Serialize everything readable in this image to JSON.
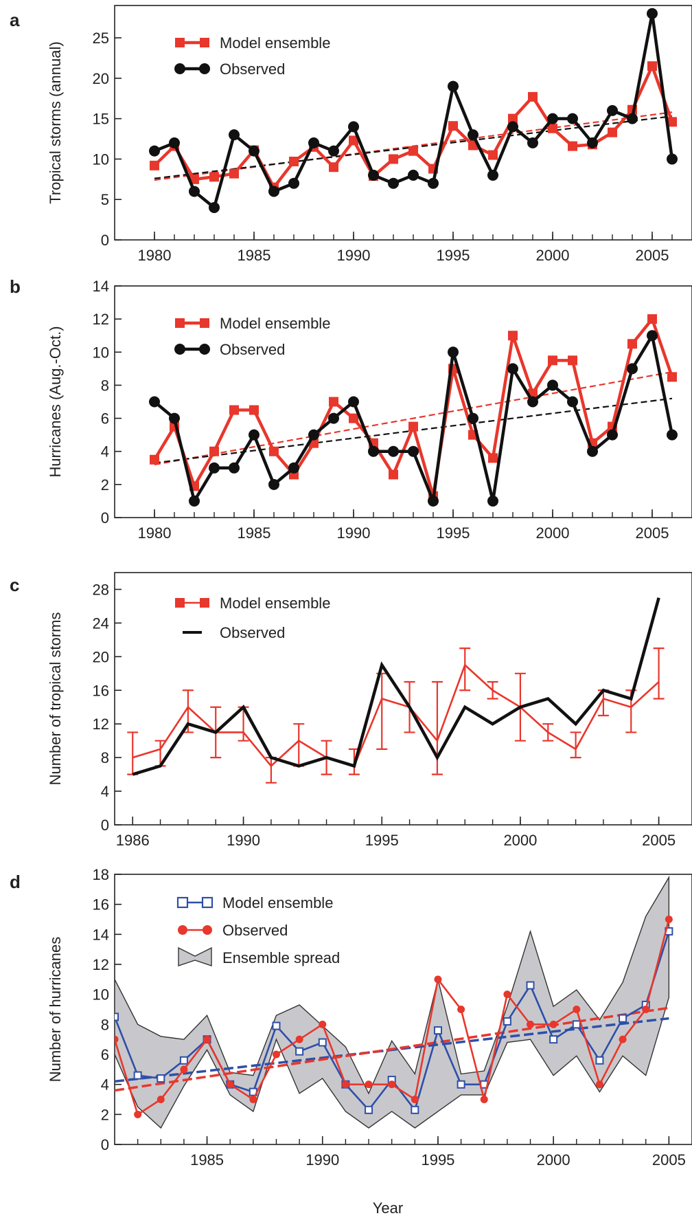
{
  "figure": {
    "xlabel": "Year"
  },
  "chart_data": [
    {
      "panel": "a",
      "type": "line",
      "ylabel": "Tropical storms (annual)",
      "xlim": [
        1978,
        2007
      ],
      "ylim": [
        0,
        29
      ],
      "yticks": [
        0,
        5,
        10,
        15,
        20,
        25
      ],
      "xticks": [
        1980,
        1985,
        1990,
        1995,
        2000,
        2005
      ],
      "xminor": [
        1980,
        1981,
        1982,
        1983,
        1984,
        1985,
        1986,
        1987,
        1988,
        1989,
        1990,
        1991,
        1992,
        1993,
        1994,
        1995,
        1996,
        1997,
        1998,
        1999,
        2000,
        2001,
        2002,
        2003,
        2004,
        2005,
        2006
      ],
      "legend_position": "top-left",
      "series": [
        {
          "name": "Model ensemble",
          "color": "#e8372c",
          "marker": "square",
          "x": [
            1980,
            1981,
            1982,
            1983,
            1984,
            1985,
            1986,
            1987,
            1988,
            1989,
            1990,
            1991,
            1992,
            1993,
            1994,
            1995,
            1996,
            1997,
            1998,
            1999,
            2000,
            2001,
            2002,
            2003,
            2004,
            2005,
            2006
          ],
          "values": [
            9.2,
            11.6,
            7.5,
            7.8,
            8.2,
            11.1,
            6.5,
            9.7,
            11.5,
            9.0,
            12.3,
            7.9,
            10.0,
            11.0,
            8.8,
            14.1,
            11.7,
            10.5,
            15.0,
            17.7,
            13.8,
            11.6,
            11.8,
            13.3,
            16.1,
            21.5,
            14.6
          ],
          "trend": [
            7.4,
            15.8
          ]
        },
        {
          "name": "Observed",
          "color": "#111111",
          "marker": "circle",
          "x": [
            1980,
            1981,
            1982,
            1983,
            1984,
            1985,
            1986,
            1987,
            1988,
            1989,
            1990,
            1991,
            1992,
            1993,
            1994,
            1995,
            1996,
            1997,
            1998,
            1999,
            2000,
            2001,
            2002,
            2003,
            2004,
            2005,
            2006
          ],
          "values": [
            11,
            12,
            6,
            4,
            13,
            11,
            6,
            7,
            12,
            11,
            14,
            8,
            7,
            8,
            7,
            19,
            13,
            8,
            14,
            12,
            15,
            15,
            12,
            16,
            15,
            28,
            10
          ],
          "trend": [
            7.6,
            15.3
          ]
        }
      ]
    },
    {
      "panel": "b",
      "type": "line",
      "ylabel": "Hurricanes (Aug.-Oct.)",
      "xlim": [
        1978,
        2007
      ],
      "ylim": [
        0,
        14
      ],
      "yticks": [
        0,
        2,
        4,
        6,
        8,
        10,
        12,
        14
      ],
      "xticks": [
        1980,
        1985,
        1990,
        1995,
        2000,
        2005
      ],
      "xminor": [
        1980,
        1981,
        1982,
        1983,
        1984,
        1985,
        1986,
        1987,
        1988,
        1989,
        1990,
        1991,
        1992,
        1993,
        1994,
        1995,
        1996,
        1997,
        1998,
        1999,
        2000,
        2001,
        2002,
        2003,
        2004,
        2005,
        2006
      ],
      "legend_position": "top-left",
      "series": [
        {
          "name": "Model ensemble",
          "color": "#e8372c",
          "marker": "square",
          "x": [
            1980,
            1981,
            1982,
            1983,
            1984,
            1985,
            1986,
            1987,
            1988,
            1989,
            1990,
            1991,
            1992,
            1993,
            1994,
            1995,
            1996,
            1997,
            1998,
            1999,
            2000,
            2001,
            2002,
            2003,
            2004,
            2005,
            2006
          ],
          "values": [
            3.5,
            5.5,
            1.9,
            4.0,
            6.5,
            6.5,
            4.0,
            2.6,
            4.5,
            7.0,
            6.0,
            4.5,
            2.6,
            5.5,
            1.3,
            9.0,
            5.0,
            3.6,
            11.0,
            7.5,
            9.5,
            9.5,
            4.5,
            5.5,
            10.5,
            12.0,
            8.5
          ],
          "trend": [
            3.2,
            8.8
          ]
        },
        {
          "name": "Observed",
          "color": "#111111",
          "marker": "circle",
          "x": [
            1980,
            1981,
            1982,
            1983,
            1984,
            1985,
            1986,
            1987,
            1988,
            1989,
            1990,
            1991,
            1992,
            1993,
            1994,
            1995,
            1996,
            1997,
            1998,
            1999,
            2000,
            2001,
            2002,
            2003,
            2004,
            2005,
            2006
          ],
          "values": [
            7,
            6,
            1,
            3,
            3,
            5,
            2,
            3,
            5,
            6,
            7,
            4,
            4,
            4,
            1,
            10,
            6,
            1,
            9,
            7,
            8,
            7,
            4,
            5,
            9,
            11,
            5
          ],
          "trend": [
            3.3,
            7.2
          ]
        }
      ]
    },
    {
      "panel": "c",
      "type": "line",
      "ylabel": "Number of tropical storms",
      "xlim": [
        1985.35,
        2006.2
      ],
      "ylim": [
        0,
        30
      ],
      "yticks": [
        0,
        4,
        8,
        12,
        16,
        20,
        24,
        28
      ],
      "xticks": [
        1986,
        1990,
        1995,
        2000,
        2005
      ],
      "xminor": [
        1986,
        1987,
        1988,
        1989,
        1990,
        1991,
        1992,
        1993,
        1994,
        1995,
        1996,
        1997,
        1998,
        1999,
        2000,
        2001,
        2002,
        2003,
        2004,
        2005
      ],
      "legend_position": "top-left",
      "series": [
        {
          "name": "Model ensemble",
          "color": "#e8372c",
          "marker": "errorbar",
          "x": [
            1986,
            1987,
            1988,
            1989,
            1990,
            1991,
            1992,
            1993,
            1994,
            1995,
            1996,
            1997,
            1998,
            1999,
            2000,
            2001,
            2002,
            2003,
            2004,
            2005
          ],
          "values": [
            8,
            9,
            14,
            11,
            11,
            7,
            10,
            8,
            7,
            15,
            14,
            10,
            19,
            16,
            14,
            11,
            9,
            15,
            14,
            17
          ],
          "lower": [
            6,
            7,
            11,
            8,
            10,
            5,
            7,
            6,
            6,
            9,
            11,
            6,
            16,
            15,
            10,
            10,
            8,
            13,
            11,
            15
          ],
          "upper": [
            11,
            10,
            16,
            14,
            14,
            8,
            12,
            10,
            9,
            18,
            17,
            17,
            21,
            17,
            18,
            12,
            11,
            16,
            16,
            21
          ]
        },
        {
          "name": "Observed",
          "color": "#111111",
          "marker": "none",
          "x": [
            1986,
            1987,
            1988,
            1989,
            1990,
            1991,
            1992,
            1993,
            1994,
            1995,
            1996,
            1997,
            1998,
            1999,
            2000,
            2001,
            2002,
            2003,
            2004,
            2005
          ],
          "values": [
            6,
            7,
            12,
            11,
            14,
            8,
            7,
            8,
            7,
            19,
            14,
            8,
            14,
            12,
            14,
            15,
            12,
            16,
            15,
            27
          ]
        }
      ]
    },
    {
      "panel": "d",
      "type": "line",
      "ylabel": "Number of hurricanes",
      "xlim": [
        1981,
        2006
      ],
      "ylim": [
        0,
        18
      ],
      "yticks": [
        0,
        2,
        4,
        6,
        8,
        10,
        12,
        14,
        16,
        18
      ],
      "xticks": [
        1985,
        1990,
        1995,
        2000,
        2005
      ],
      "xminor": [
        1982,
        1983,
        1984,
        1985,
        1986,
        1987,
        1988,
        1989,
        1990,
        1991,
        1992,
        1993,
        1994,
        1995,
        1996,
        1997,
        1998,
        1999,
        2000,
        2001,
        2002,
        2003,
        2004,
        2005
      ],
      "legend_position": "top-left",
      "series": [
        {
          "name": "Model ensemble",
          "color": "#2e4fa8",
          "marker": "open-square",
          "x": [
            1981,
            1982,
            1983,
            1984,
            1985,
            1986,
            1987,
            1988,
            1989,
            1990,
            1991,
            1992,
            1993,
            1994,
            1995,
            1996,
            1997,
            1998,
            1999,
            2000,
            2001,
            2002,
            2003,
            2004,
            2005
          ],
          "values": [
            8.5,
            4.6,
            4.4,
            5.6,
            7.0,
            4.0,
            3.5,
            7.9,
            6.2,
            6.8,
            4.0,
            2.3,
            4.3,
            2.3,
            7.6,
            4.0,
            4.0,
            8.2,
            10.6,
            7.0,
            8.0,
            5.6,
            8.4,
            9.3,
            14.2
          ],
          "trend": [
            4.2,
            8.4
          ]
        },
        {
          "name": "Observed",
          "color": "#e8372c",
          "marker": "circle",
          "x": [
            1981,
            1982,
            1983,
            1984,
            1985,
            1986,
            1987,
            1988,
            1989,
            1990,
            1991,
            1992,
            1993,
            1994,
            1995,
            1996,
            1997,
            1998,
            1999,
            2000,
            2001,
            2002,
            2003,
            2004,
            2005
          ],
          "values": [
            7,
            2,
            3,
            5,
            7,
            4,
            3,
            6,
            7,
            8,
            4,
            4,
            4,
            3,
            11,
            9,
            3,
            10,
            8,
            8,
            9,
            4,
            7,
            9,
            15
          ],
          "trend": [
            3.6,
            9.1
          ]
        },
        {
          "name": "Ensemble spread",
          "color": "#c8c8cc",
          "marker": "band",
          "x": [
            1981,
            1982,
            1983,
            1984,
            1985,
            1986,
            1987,
            1988,
            1989,
            1990,
            1991,
            1992,
            1993,
            1994,
            1995,
            1996,
            1997,
            1998,
            1999,
            2000,
            2001,
            2002,
            2003,
            2004,
            2005
          ],
          "upper": [
            11,
            8,
            7.2,
            7,
            8.6,
            4.8,
            4.6,
            8.6,
            9.3,
            7.9,
            6.5,
            3.4,
            6.9,
            4.7,
            11,
            4.7,
            4.9,
            9.2,
            14.2,
            9.2,
            10.3,
            8.3,
            10.8,
            15.2,
            17.8
          ],
          "lower": [
            6,
            2.5,
            1.1,
            3.9,
            6.3,
            3.3,
            2.2,
            7,
            3.4,
            4.4,
            2.2,
            1.1,
            2.2,
            1.1,
            2.2,
            3.3,
            3.3,
            6.8,
            7,
            4.6,
            5.9,
            3.5,
            5.9,
            4.6,
            9.8
          ]
        }
      ]
    }
  ]
}
